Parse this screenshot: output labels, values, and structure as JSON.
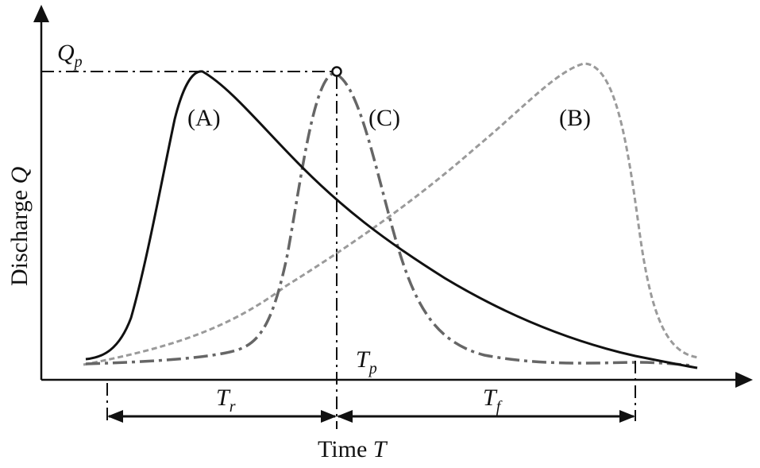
{
  "diagram": {
    "y_axis_label": {
      "text": "Discharge ",
      "variable": "Q"
    },
    "x_axis_label": {
      "text": "Time ",
      "variable": "T"
    },
    "peak_label": {
      "symbol": "Q",
      "subscript": "p"
    },
    "curve_labels": {
      "a": "(A)",
      "b": "(B)",
      "c": "(C)"
    },
    "peak_time_label": {
      "symbol": "T",
      "subscript": "p"
    },
    "rise_time_label": {
      "symbol": "T",
      "subscript": "r"
    },
    "fall_time_label": {
      "symbol": "T",
      "subscript": "f"
    }
  }
}
